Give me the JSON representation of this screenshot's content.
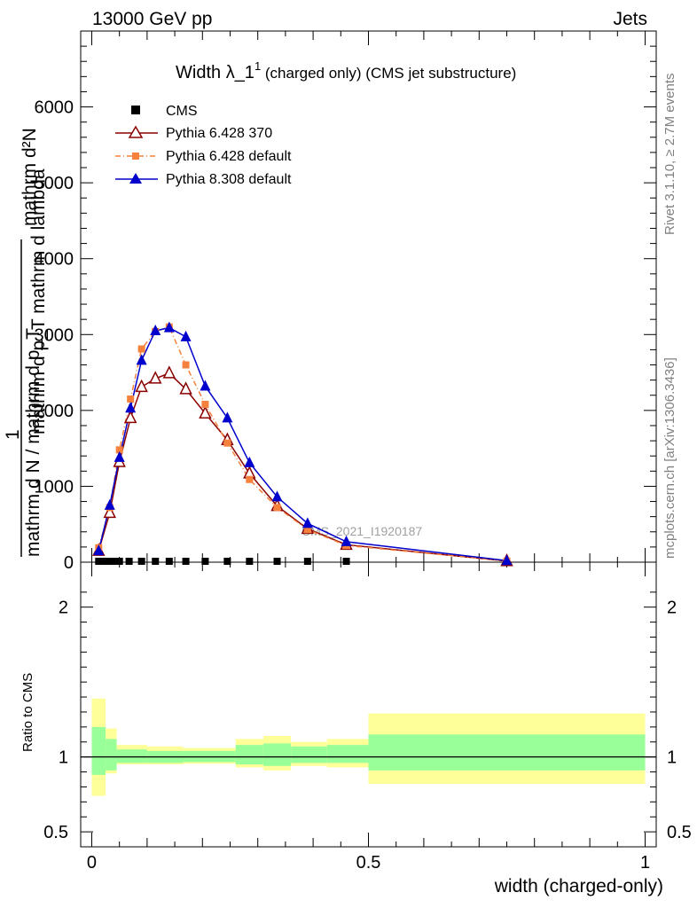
{
  "header": {
    "left": "13000 GeV pp",
    "right": "Jets"
  },
  "side_labels": {
    "rivet": "Rivet 3.1.10, ≥ 2.7M events",
    "mcplots": "mcplots.cern.ch [arXiv:1306.3436]"
  },
  "main_title": {
    "prefix": "Width ",
    "lambda": "λ_1",
    "sup": "1",
    "suffix": " (charged only) (CMS jet substructure)"
  },
  "y_label": {
    "line1": "mathrm d²N",
    "line2": "mathrm d p_T mathrm d lambda",
    "frac_top": "1",
    "line3": "mathrm d N / mathrm d p_T"
  },
  "watermark": "CMS_2021_I1920187",
  "ratio_ylabel": "Ratio to CMS",
  "x_label": "width (charged-only)",
  "colors": {
    "cms": "#000000",
    "py6_370": "#8b0000",
    "py6_default": "#f5813c",
    "py8": "#0000cc",
    "band_inner": "#99ff99",
    "band_outer": "#ffff99"
  },
  "chart_data": {
    "type": "line",
    "x_range": [
      -0.02,
      1.02
    ],
    "main_ylim": [
      0,
      7000
    ],
    "main_yticks": [
      0,
      1000,
      2000,
      3000,
      4000,
      5000,
      6000
    ],
    "main_ytick_labels": [
      "0",
      "1000",
      "2000",
      "3000",
      "4000",
      "5000",
      "6000"
    ],
    "ratio_ylim": [
      0.4,
      2.3
    ],
    "ratio_yticks": [
      0.5,
      1,
      2
    ],
    "ratio_ytick_labels": [
      "0.5",
      "1",
      "2"
    ],
    "x_ticks": [
      0,
      0.5,
      1
    ],
    "x_tick_labels": [
      "0",
      "0.5",
      "1"
    ],
    "legend_position": "top-left",
    "series": [
      {
        "name": "CMS",
        "style": "square",
        "x": [
          0.0125,
          0.025,
          0.0375,
          0.05,
          0.0675,
          0.09,
          0.115,
          0.14,
          0.17,
          0.205,
          0.245,
          0.285,
          0.335,
          0.39,
          0.46
        ],
        "y": [
          0,
          0,
          0,
          0,
          0,
          0,
          0,
          0,
          0,
          0,
          0,
          0,
          0,
          0,
          0
        ]
      },
      {
        "name": "Pythia 6.428 370",
        "style": "open-triangle",
        "x": [
          0.0125,
          0.0325,
          0.05,
          0.07,
          0.09,
          0.115,
          0.14,
          0.17,
          0.205,
          0.245,
          0.285,
          0.335,
          0.39,
          0.46,
          0.75
        ],
        "y": [
          150,
          650,
          1320,
          1900,
          2310,
          2420,
          2490,
          2280,
          1960,
          1610,
          1170,
          740,
          440,
          230,
          15
        ]
      },
      {
        "name": "Pythia 6.428 default",
        "style": "square-dashdot",
        "x": [
          0.0125,
          0.0325,
          0.05,
          0.07,
          0.09,
          0.115,
          0.14,
          0.17,
          0.205,
          0.245,
          0.285,
          0.335,
          0.39,
          0.46,
          0.75
        ],
        "y": [
          190,
          720,
          1480,
          2150,
          2810,
          3040,
          3100,
          2600,
          2080,
          1570,
          1090,
          720,
          430,
          220,
          15
        ]
      },
      {
        "name": "Pythia 8.308 default",
        "style": "filled-triangle",
        "x": [
          0.0125,
          0.0325,
          0.05,
          0.07,
          0.09,
          0.115,
          0.14,
          0.17,
          0.205,
          0.245,
          0.285,
          0.335,
          0.39,
          0.46,
          0.75
        ],
        "y": [
          150,
          750,
          1380,
          2030,
          2660,
          3050,
          3090,
          2970,
          2320,
          1900,
          1310,
          860,
          510,
          270,
          20
        ]
      }
    ],
    "ratio_band": {
      "edges": [
        0,
        0.025,
        0.045,
        0.1,
        0.165,
        0.26,
        0.31,
        0.36,
        0.425,
        0.5,
        1.0
      ],
      "inner_lo": [
        0.88,
        0.91,
        0.96,
        0.96,
        0.965,
        0.95,
        0.94,
        0.96,
        0.96,
        0.91
      ],
      "inner_hi": [
        1.2,
        1.12,
        1.05,
        1.04,
        1.04,
        1.08,
        1.09,
        1.07,
        1.08,
        1.15
      ],
      "outer_lo": [
        0.74,
        0.89,
        0.95,
        0.95,
        0.955,
        0.93,
        0.91,
        0.94,
        0.93,
        0.82
      ],
      "outer_hi": [
        1.39,
        1.19,
        1.08,
        1.07,
        1.06,
        1.12,
        1.14,
        1.1,
        1.12,
        1.29
      ]
    }
  }
}
